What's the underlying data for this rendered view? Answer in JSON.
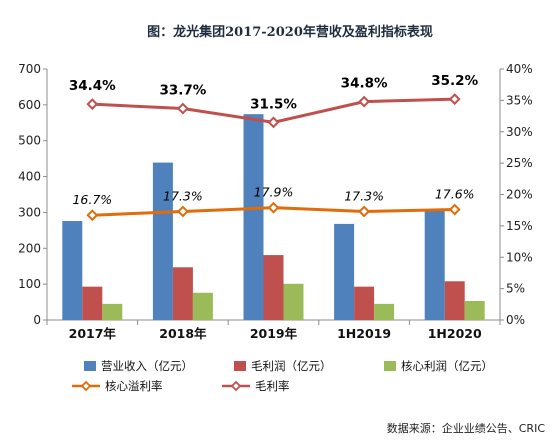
{
  "chart_data": {
    "type": "bar",
    "title": "图：龙光集团2017-2020年营收及盈利指标表现",
    "categories": [
      "2017年",
      "2018年",
      "2019年",
      "1H2019",
      "1H2020"
    ],
    "y_left": {
      "ylim": [
        0,
        700
      ],
      "ticks": [
        "0",
        "100",
        "200",
        "300",
        "400",
        "500",
        "600",
        "700"
      ]
    },
    "y_right": {
      "ylim": [
        0,
        40
      ],
      "ticks": [
        "0%",
        "5%",
        "10%",
        "15%",
        "20%",
        "25%",
        "30%",
        "35%",
        "40%"
      ]
    },
    "bar_series": [
      {
        "name": "营业收入（亿元）",
        "color": "#4f81bd",
        "values": [
          276,
          439,
          574,
          268,
          309
        ]
      },
      {
        "name": "毛利润（亿元）",
        "color": "#c0504d",
        "values": [
          93,
          147,
          181,
          93,
          108
        ]
      },
      {
        "name": "核心利润（亿元）",
        "color": "#9bbb59",
        "values": [
          45,
          76,
          101,
          45,
          53
        ]
      }
    ],
    "line_series": [
      {
        "name": "核心溢利率",
        "color": "#e36c09",
        "axis": "right",
        "values": [
          16.7,
          17.3,
          17.9,
          17.3,
          17.6
        ],
        "labels": [
          "16.7%",
          "17.3%",
          "17.9%",
          "17.3%",
          "17.6%"
        ]
      },
      {
        "name": "毛利率",
        "color": "#c0504d",
        "axis": "right",
        "values": [
          34.4,
          33.7,
          31.5,
          34.8,
          35.2
        ],
        "labels": [
          "34.4%",
          "33.7%",
          "31.5%",
          "34.8%",
          "35.2%"
        ]
      }
    ],
    "legend_position": "bottom",
    "grid": false
  },
  "source": "数据来源：企业业绩公告、CRIC"
}
